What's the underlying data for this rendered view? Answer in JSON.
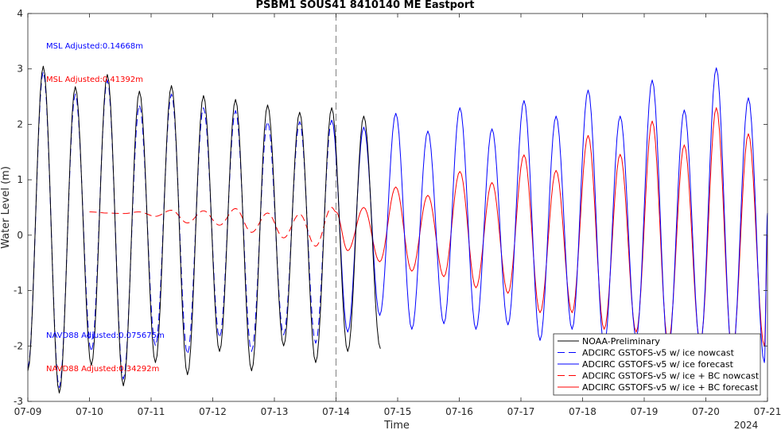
{
  "chart_data": {
    "type": "line",
    "title": "PSBM1 SOUS41 8410140 ME Eastport",
    "xlabel": "Time",
    "ylabel": "Water Level (m)",
    "xlim": [
      "07-09",
      "07-21"
    ],
    "ylim": [
      -3,
      4
    ],
    "x_ticks": [
      "07-09",
      "07-10",
      "07-11",
      "07-12",
      "07-13",
      "07-14",
      "07-15",
      "07-16",
      "07-17",
      "07-18",
      "07-19",
      "07-20",
      "07-21"
    ],
    "y_ticks": [
      "-3",
      "-2",
      "-1",
      "0",
      "1",
      "2",
      "3",
      "4"
    ],
    "year_label": "2024",
    "forecast_start_line": "07-14",
    "grid": false,
    "legend_position": "bottom-right",
    "annotations": [
      {
        "text": "MSL Adjusted:0.14668m",
        "color": "#0000ff"
      },
      {
        "text": "MSL Adjusted:0.41392m",
        "color": "#ff0000"
      },
      {
        "text": "NAVD88 Adjusted:0.075675m",
        "color": "#0000ff"
      },
      {
        "text": "NAVD88 Adjusted:0.34292m",
        "color": "#ff0000"
      }
    ],
    "x_unit": "days since 07-09 00:00",
    "series": [
      {
        "name": "NOAA-Preliminary",
        "color": "#000000",
        "dash": "solid",
        "x_range": [
          0.0,
          5.75
        ],
        "extrema": [
          {
            "x": 0.0,
            "y": -2.45
          },
          {
            "x": 0.25,
            "y": 3.05
          },
          {
            "x": 0.51,
            "y": -2.85
          },
          {
            "x": 0.77,
            "y": 2.68
          },
          {
            "x": 1.03,
            "y": -2.35
          },
          {
            "x": 1.29,
            "y": 2.9
          },
          {
            "x": 1.55,
            "y": -2.72
          },
          {
            "x": 1.81,
            "y": 2.6
          },
          {
            "x": 2.07,
            "y": -2.3
          },
          {
            "x": 2.33,
            "y": 2.7
          },
          {
            "x": 2.59,
            "y": -2.52
          },
          {
            "x": 2.85,
            "y": 2.52
          },
          {
            "x": 3.11,
            "y": -2.1
          },
          {
            "x": 3.37,
            "y": 2.45
          },
          {
            "x": 3.63,
            "y": -2.45
          },
          {
            "x": 3.89,
            "y": 2.35
          },
          {
            "x": 4.15,
            "y": -2.0
          },
          {
            "x": 4.41,
            "y": 2.22
          },
          {
            "x": 4.67,
            "y": -2.3
          },
          {
            "x": 4.93,
            "y": 2.3
          },
          {
            "x": 5.19,
            "y": -2.1
          },
          {
            "x": 5.45,
            "y": 2.15
          },
          {
            "x": 5.72,
            "y": -2.05
          }
        ]
      },
      {
        "name": "ADCIRC GSTOFS-v5 w/ ice nowcast",
        "color": "#0000ff",
        "dash": "dashed",
        "x_range": [
          0.0,
          5.0
        ],
        "extrema": [
          {
            "x": 0.0,
            "y": -2.4
          },
          {
            "x": 0.25,
            "y": 2.95
          },
          {
            "x": 0.51,
            "y": -2.75
          },
          {
            "x": 0.77,
            "y": 2.55
          },
          {
            "x": 1.03,
            "y": -2.1
          },
          {
            "x": 1.29,
            "y": 2.8
          },
          {
            "x": 1.55,
            "y": -2.6
          },
          {
            "x": 1.81,
            "y": 2.35
          },
          {
            "x": 2.07,
            "y": -2.0
          },
          {
            "x": 2.33,
            "y": 2.55
          },
          {
            "x": 2.59,
            "y": -2.15
          },
          {
            "x": 2.85,
            "y": 2.3
          },
          {
            "x": 3.11,
            "y": -1.85
          },
          {
            "x": 3.37,
            "y": 2.25
          },
          {
            "x": 3.63,
            "y": -2.1
          },
          {
            "x": 3.89,
            "y": 2.05
          },
          {
            "x": 4.15,
            "y": -1.8
          },
          {
            "x": 4.41,
            "y": 2.05
          },
          {
            "x": 4.67,
            "y": -1.95
          },
          {
            "x": 4.93,
            "y": 2.08
          }
        ]
      },
      {
        "name": "ADCIRC GSTOFS-v5 w/ ice forecast",
        "color": "#0000ff",
        "dash": "solid",
        "x_range": [
          5.0,
          12.0
        ],
        "extrema": [
          {
            "x": 4.93,
            "y": 2.08
          },
          {
            "x": 5.19,
            "y": -1.75
          },
          {
            "x": 5.45,
            "y": 1.95
          },
          {
            "x": 5.71,
            "y": -1.45
          },
          {
            "x": 5.97,
            "y": 2.2
          },
          {
            "x": 6.23,
            "y": -1.7
          },
          {
            "x": 6.49,
            "y": 1.88
          },
          {
            "x": 6.75,
            "y": -1.6
          },
          {
            "x": 7.01,
            "y": 2.3
          },
          {
            "x": 7.27,
            "y": -1.7
          },
          {
            "x": 7.53,
            "y": 1.92
          },
          {
            "x": 7.79,
            "y": -1.62
          },
          {
            "x": 8.05,
            "y": 2.43
          },
          {
            "x": 8.31,
            "y": -1.9
          },
          {
            "x": 8.57,
            "y": 2.15
          },
          {
            "x": 8.83,
            "y": -1.7
          },
          {
            "x": 9.09,
            "y": 2.62
          },
          {
            "x": 9.35,
            "y": -2.0
          },
          {
            "x": 9.61,
            "y": 2.15
          },
          {
            "x": 9.87,
            "y": -1.85
          },
          {
            "x": 10.13,
            "y": 2.8
          },
          {
            "x": 10.39,
            "y": -2.1
          },
          {
            "x": 10.65,
            "y": 2.26
          },
          {
            "x": 10.91,
            "y": -2.0
          },
          {
            "x": 11.17,
            "y": 3.02
          },
          {
            "x": 11.43,
            "y": -2.2
          },
          {
            "x": 11.69,
            "y": 2.48
          },
          {
            "x": 11.95,
            "y": -2.3
          },
          {
            "x": 12.0,
            "y": 0.4
          }
        ]
      },
      {
        "name": "ADCIRC GSTOFS-v5 w/ ice + BC nowcast",
        "color": "#ff0000",
        "dash": "dashed",
        "x_range": [
          1.0,
          5.0
        ],
        "extrema": [
          {
            "x": 1.0,
            "y": 0.42
          },
          {
            "x": 1.29,
            "y": 0.4
          },
          {
            "x": 1.55,
            "y": 0.39
          },
          {
            "x": 1.81,
            "y": 0.42
          },
          {
            "x": 2.07,
            "y": 0.34
          },
          {
            "x": 2.33,
            "y": 0.45
          },
          {
            "x": 2.59,
            "y": 0.22
          },
          {
            "x": 2.85,
            "y": 0.44
          },
          {
            "x": 3.11,
            "y": 0.18
          },
          {
            "x": 3.37,
            "y": 0.48
          },
          {
            "x": 3.63,
            "y": 0.05
          },
          {
            "x": 3.89,
            "y": 0.4
          },
          {
            "x": 4.15,
            "y": -0.05
          },
          {
            "x": 4.41,
            "y": 0.38
          },
          {
            "x": 4.67,
            "y": -0.2
          },
          {
            "x": 4.93,
            "y": 0.5
          },
          {
            "x": 5.0,
            "y": 0.42
          }
        ]
      },
      {
        "name": "ADCIRC GSTOFS-v5 w/ ice + BC forecast",
        "color": "#ff0000",
        "dash": "solid",
        "x_range": [
          5.0,
          12.0
        ],
        "extrema": [
          {
            "x": 5.0,
            "y": 0.42
          },
          {
            "x": 5.19,
            "y": -0.28
          },
          {
            "x": 5.45,
            "y": 0.5
          },
          {
            "x": 5.71,
            "y": -0.48
          },
          {
            "x": 5.97,
            "y": 0.87
          },
          {
            "x": 6.23,
            "y": -0.65
          },
          {
            "x": 6.49,
            "y": 0.72
          },
          {
            "x": 6.75,
            "y": -0.75
          },
          {
            "x": 7.01,
            "y": 1.15
          },
          {
            "x": 7.27,
            "y": -0.95
          },
          {
            "x": 7.53,
            "y": 0.95
          },
          {
            "x": 7.79,
            "y": -1.05
          },
          {
            "x": 8.05,
            "y": 1.45
          },
          {
            "x": 8.31,
            "y": -1.4
          },
          {
            "x": 8.57,
            "y": 1.17
          },
          {
            "x": 8.83,
            "y": -1.4
          },
          {
            "x": 9.09,
            "y": 1.8
          },
          {
            "x": 9.35,
            "y": -1.7
          },
          {
            "x": 9.61,
            "y": 1.46
          },
          {
            "x": 9.87,
            "y": -1.75
          },
          {
            "x": 10.13,
            "y": 2.06
          },
          {
            "x": 10.39,
            "y": -1.95
          },
          {
            "x": 10.65,
            "y": 1.63
          },
          {
            "x": 10.91,
            "y": -1.95
          },
          {
            "x": 11.17,
            "y": 2.3
          },
          {
            "x": 11.43,
            "y": -2.1
          },
          {
            "x": 11.69,
            "y": 1.83
          },
          {
            "x": 11.95,
            "y": -2.0
          },
          {
            "x": 12.0,
            "y": 0.0
          }
        ]
      }
    ]
  }
}
